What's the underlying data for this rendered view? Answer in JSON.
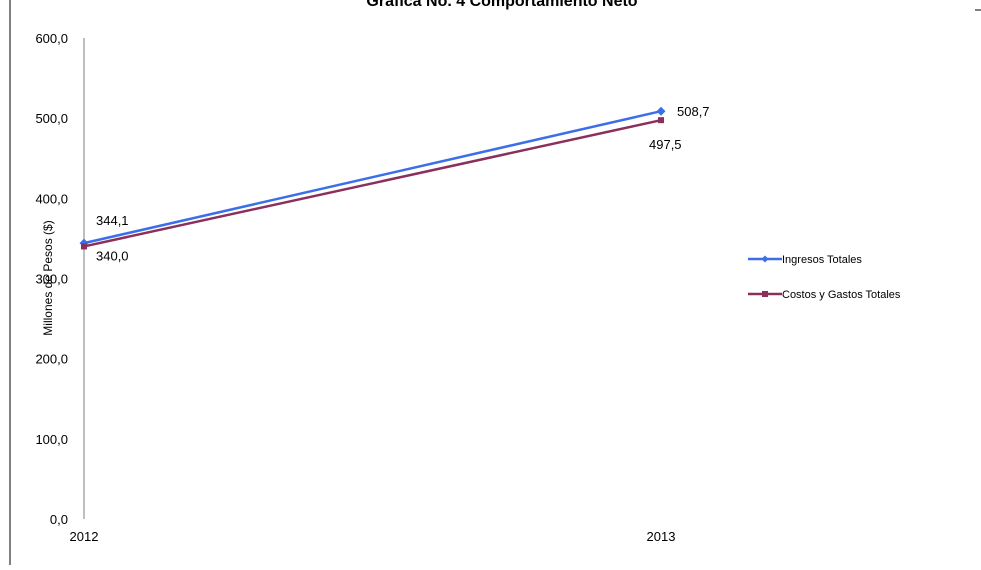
{
  "chart_data": {
    "type": "line",
    "title": "Grafica No. 4 Comportamiento Neto",
    "xlabel": "",
    "ylabel": "Millones de Pesos ($)",
    "categories": [
      "2012",
      "2013"
    ],
    "ylim": [
      0,
      600
    ],
    "yticks": [
      "0,0",
      "100,0",
      "200,0",
      "300,0",
      "400,0",
      "500,0",
      "600,0"
    ],
    "grid": false,
    "legend_position": "right",
    "series": [
      {
        "name": "Ingresos Totales",
        "values": [
          344.1,
          508.7
        ],
        "labels": [
          "344,1",
          "508,7"
        ],
        "color": "#3b6ee8",
        "marker": "diamond"
      },
      {
        "name": "Costos y Gastos Totales",
        "values": [
          340.0,
          497.5
        ],
        "labels": [
          "340,0",
          "497,5"
        ],
        "color": "#8b2f5c",
        "marker": "square"
      }
    ]
  }
}
